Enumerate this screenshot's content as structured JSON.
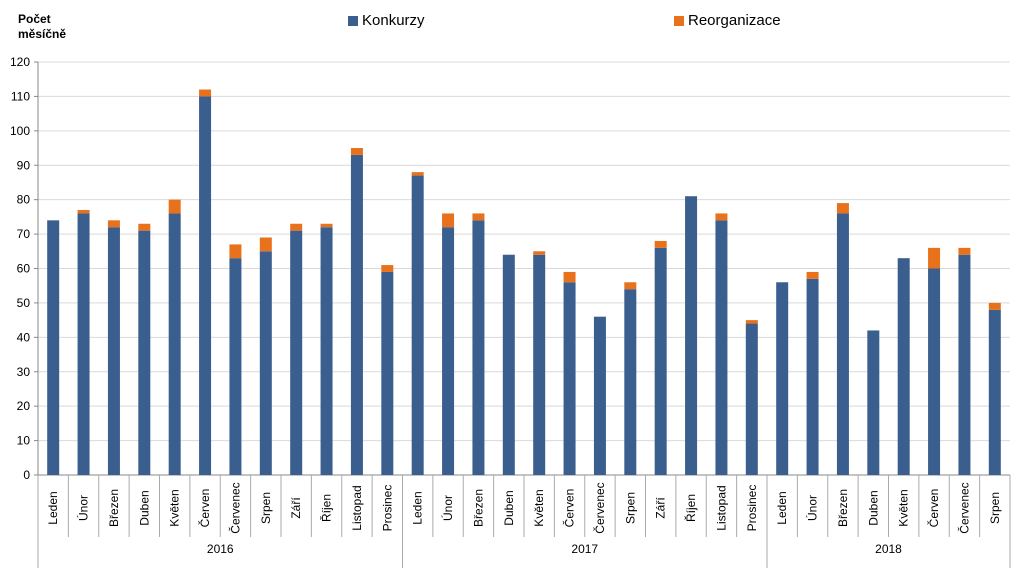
{
  "chart_data": {
    "type": "bar",
    "stacked": true,
    "ylabel": "Počet měsíčně",
    "ylabel_lines": [
      "Počet",
      "měsíčně"
    ],
    "ylim": [
      0,
      120
    ],
    "yticks": [
      0,
      10,
      20,
      30,
      40,
      50,
      60,
      70,
      80,
      90,
      100,
      110,
      120
    ],
    "grid": true,
    "legend_position": "top",
    "categories": [
      "Leden",
      "Únor",
      "Březen",
      "Duben",
      "Květen",
      "Červen",
      "Červenec",
      "Srpen",
      "Září",
      "Říjen",
      "Listopad",
      "Prosinec",
      "Leden",
      "Únor",
      "Březen",
      "Duben",
      "Květen",
      "Červen",
      "Červenec",
      "Srpen",
      "Září",
      "Říjen",
      "Listopad",
      "Prosinec",
      "Leden",
      "Únor",
      "Březen",
      "Duben",
      "Květen",
      "Červen",
      "Červenec",
      "Srpen"
    ],
    "groups": [
      {
        "label": "2016",
        "count": 12
      },
      {
        "label": "2017",
        "count": 12
      },
      {
        "label": "2018",
        "count": 8
      }
    ],
    "series": [
      {
        "name": "Konkurzy",
        "color": "#3a5f8f",
        "values": [
          74,
          76,
          72,
          71,
          76,
          110,
          63,
          65,
          71,
          72,
          93,
          59,
          87,
          72,
          74,
          64,
          64,
          56,
          46,
          54,
          66,
          81,
          74,
          44,
          56,
          57,
          76,
          42,
          63,
          60,
          64,
          48
        ]
      },
      {
        "name": "Reorganizace",
        "color": "#e8711c",
        "values": [
          0,
          1,
          2,
          2,
          4,
          2,
          4,
          4,
          2,
          1,
          2,
          2,
          1,
          4,
          2,
          0,
          1,
          3,
          0,
          2,
          2,
          0,
          2,
          1,
          0,
          2,
          3,
          0,
          0,
          6,
          2,
          2
        ]
      }
    ]
  }
}
